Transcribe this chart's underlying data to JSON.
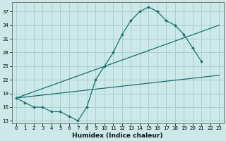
{
  "xlabel": "Humidex (Indice chaleur)",
  "bg_color": "#cce8e8",
  "grid_color": "#aacfcf",
  "line_color": "#1a7070",
  "xlim": [
    -0.5,
    23.5
  ],
  "ylim": [
    12.5,
    39
  ],
  "xticks": [
    0,
    1,
    2,
    3,
    4,
    5,
    6,
    7,
    8,
    9,
    10,
    11,
    12,
    13,
    14,
    15,
    16,
    17,
    18,
    19,
    20,
    21,
    22,
    23
  ],
  "yticks": [
    13,
    16,
    19,
    22,
    25,
    28,
    31,
    34,
    37
  ],
  "line1_x": [
    0,
    1,
    2,
    3,
    4,
    5,
    6,
    7,
    8,
    9,
    10,
    11,
    12,
    13,
    14,
    15,
    16,
    17,
    18,
    19,
    20,
    21
  ],
  "line1_y": [
    18,
    17,
    16,
    16,
    15,
    15,
    14,
    13,
    16,
    22,
    25,
    28,
    32,
    35,
    37,
    38,
    37,
    35,
    34,
    32,
    29,
    26
  ],
  "line2_x": [
    0,
    23
  ],
  "line2_y": [
    18,
    34
  ],
  "line3_x": [
    0,
    23
  ],
  "line3_y": [
    18,
    23
  ]
}
